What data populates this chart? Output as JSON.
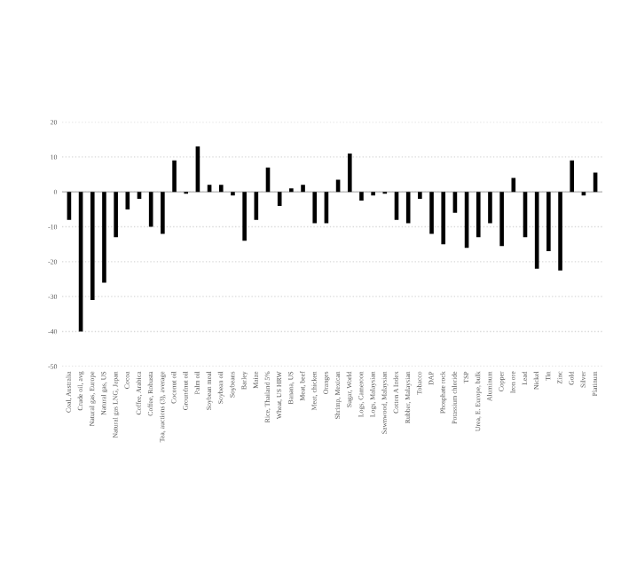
{
  "chart_data": {
    "type": "bar",
    "categories": [
      "Coal, Australia",
      "Crude oil, avg",
      "Natural gas, Europe",
      "Natural gas, US",
      "Natural gas LNG, Japan",
      "Cocoa",
      "Coffee, Arabica",
      "Coffee, Robusta",
      "Tea, auctions (3), average",
      "Coconut oil",
      "Groundnut oil",
      "Palm oil",
      "Soybean meal",
      "Soybean oil",
      "Soybeans",
      "Barley",
      "Maize",
      "Rice, Thailand 5%",
      "Wheat, US HRW",
      "Banana, US",
      "Meat, beef",
      "Meat, chicken",
      "Oranges",
      "Shrimp, Mexican",
      "Sugar, World",
      "Logs, Cameroon",
      "Logs, Malaysian",
      "Sawnwood, Malaysian",
      "Cotton A Index",
      "Rubber, Malaysian",
      "Tobacco",
      "DAP",
      "Phosphate rock",
      "Potassium chloride",
      "TSP",
      "Urea, E. Europe, bulk",
      "Aluminum",
      "Copper",
      "Iron ore",
      "Lead",
      "Nickel",
      "Tin",
      "Zinc",
      "Gold",
      "Silver",
      "Platinum"
    ],
    "values": [
      -8,
      -40,
      -31,
      -26,
      -13,
      -5,
      -2,
      -10,
      -12,
      9,
      -0.5,
      13,
      2,
      2,
      -1,
      -14,
      -8,
      7,
      -4,
      1,
      2,
      -9,
      -9,
      3.5,
      11,
      -2.5,
      -1,
      -0.5,
      -8,
      -9,
      -2,
      -12,
      -15,
      -6,
      -16,
      -13,
      -9,
      -15.5,
      4,
      -13,
      -22,
      -17,
      -22.5,
      9,
      -1,
      5.5
    ],
    "color": "#000000",
    "ylim": [
      -50,
      20
    ],
    "yticks": [
      -50,
      -40,
      -30,
      -20,
      -10,
      0,
      10,
      20
    ],
    "grid": "y",
    "ref_lines": [
      {
        "axis": "y",
        "value": 0,
        "color": "#bfbfbf"
      }
    ]
  }
}
